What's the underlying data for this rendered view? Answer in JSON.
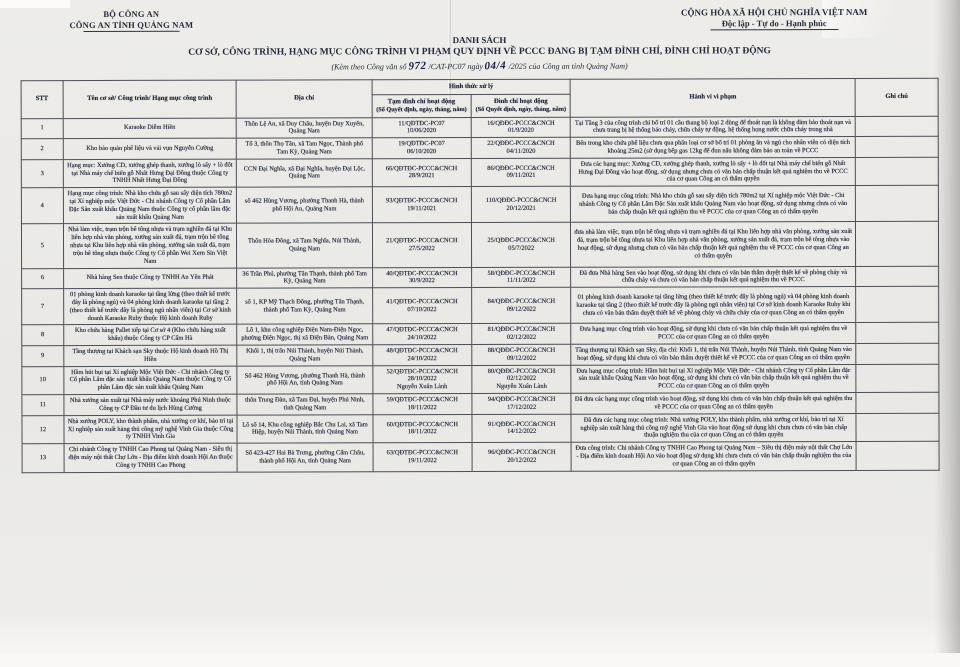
{
  "colors": {
    "ink": "#242a3c",
    "paper": "#e9e8e4",
    "border": "#4c4e58"
  },
  "header": {
    "agency_parent": "BỘ CÔNG AN",
    "agency": "CÔNG AN TỈNH QUẢNG NAM",
    "national_title": "CỘNG HÒA XÃ HỘI CHỦ NGHĨA VIỆT NAM",
    "national_motto": "Độc lập - Tự do - Hạnh phúc"
  },
  "title": {
    "heading": "DANH SÁCH",
    "subheading": "CƠ SỞ, CÔNG TRÌNH, HẠNG MỤC CÔNG TRÌNH VI PHẠM QUY ĐỊNH VỀ PCCC ĐANG BỊ TẠM ĐÌNH CHỈ, ĐÌNH CHỈ HOẠT ĐỘNG",
    "note_prefix": "(Kèm theo Công văn số ",
    "doc_number": "972",
    "note_middle": " /CAT-PC07 ngày ",
    "doc_date": "04/4",
    "note_suffix": " /2025 của Công an tỉnh Quảng Nam)"
  },
  "table": {
    "columns": {
      "stt": "STT",
      "name": "Tên cơ sở/ Công trình/ Hạng mục công trình",
      "address": "Địa chỉ",
      "sanction_group": "Hình thức xử lý",
      "tam": "Tạm đình chỉ hoạt động",
      "tam_sub": "(Số Quyết định, ngày, tháng, năm)",
      "dinh": "Đình chỉ hoạt động",
      "dinh_sub": "(Số Quyết định, ngày, tháng, năm)",
      "violation": "Hành vi vi phạm",
      "note": "Ghi chú"
    },
    "rows": [
      {
        "stt": "1",
        "name": "Karaoke Diễm Hiền",
        "address": "Thôn Lệ An, xã Duy Châu, huyện Duy Xuyên, Quảng Nam",
        "tam_so": "11/QĐTĐC-PC07",
        "tam_ngay": "10/06/2020",
        "tam_extra": "",
        "dinh_so": "16/QĐĐC-PCCC&CNCH",
        "dinh_ngay": "01/9/2020",
        "dinh_extra": "",
        "violation": "Tại Tầng 3 của công trình chỉ bố trí 01 cầu thang bộ loại 2 dùng để thoát nạn là không đảm bảo thoát nạn và chưa trang bị hệ thống báo cháy, chữa cháy tự động, hệ thống họng nước chữa cháy trong nhà",
        "note": ""
      },
      {
        "stt": "2",
        "name": "Kho bảo quản phế liệu và vải vụn Nguyễn Cường",
        "address": "Tổ 3, thôn Thọ Tân, xã Tam Ngọc, Thành phố Tam Kỳ, Quảng Nam",
        "tam_so": "19/QĐTĐC-PC07",
        "tam_ngay": "06/10/2020",
        "tam_extra": "",
        "dinh_so": "22/QĐĐC-PCCC&CNCH",
        "dinh_ngay": "04/11/2020",
        "dinh_extra": "",
        "violation": "Bên trong kho chứa phế liệu chưa qua phân loại cơ sở bố trí 01 phòng ăn và ngủ cho nhân viên có diện tích khoảng 25m2 (sử dụng bếp gas 12kg để đun nấu không đảm bảo an toàn về PCCC",
        "note": ""
      },
      {
        "stt": "3",
        "name": "Hạng mục: Xưởng CD, xưởng ghép thanh, xưởng lò sấy + lò đốt tại Nhà máy chế biến gỗ Nhất Hưng Đại Đồng thuộc Công ty TNHH Nhất Hưng Đại Đồng",
        "address": "CCN Đại Nghĩa, xã Đại Nghĩa, huyện Đại Lộc, Quảng Nam",
        "tam_so": "66/QĐTĐC-PCCC&CNCH",
        "tam_ngay": "28/9/2021",
        "tam_extra": "",
        "dinh_so": "86/QĐĐC-PCCC&CNCH",
        "dinh_ngay": "09/11/2021",
        "dinh_extra": "",
        "violation": "Đưa các hạng mục: Xưởng CD, xưởng ghép thanh, xưởng lò sấy + lò đốt tại Nhà máy chế biến gỗ Nhất Hưng Đại Đồng vào hoạt động, sử dụng nhưng chưa có văn bản chấp thuận kết quả nghiệm thu về PCCC của cơ quan Công an có thẩm quyền",
        "note": ""
      },
      {
        "stt": "4",
        "name": "Hạng mục công trình: Nhà kho chứa gỗ sau sấy diện tích 780m2 tại Xí nghiệp mộc Việt Đức - Chi nhánh Công ty Cổ phần Lâm Đặc Sản xuất khẩu Quảng Nam thuộc Công ty cổ phần lâm đặc sản xuất khẩu Quảng Nam",
        "address": "số 462 Hùng Vương, phường Thanh Hà, thành phố Hội An, Quảng Nam",
        "tam_so": "93/QĐTĐC-PCCC&CNCH",
        "tam_ngay": "19/11/2021",
        "tam_extra": "",
        "dinh_so": "110/QĐĐC-PCCC&CNCH",
        "dinh_ngay": "20/12/2021",
        "dinh_extra": "",
        "violation": "Đưa hạng mục công trình: Nhà kho chứa gỗ sau sấy diện tích 780m2 tại Xí nghiệp mộc Việt Đức - Chi nhánh Công ty Cổ phần Lâm Đặc Sản xuất khẩu Quảng Nam vào hoạt động, sử dụng nhưng chưa có văn bản chấp thuận kết quả nghiệm thu về PCCC của cơ quan Công an có thẩm quyền",
        "note": ""
      },
      {
        "stt": "5",
        "name": "Nhà làm việc, trạm trộn bê tông nhựa và trạm nghiền đá tại Khu liên hợp nhà văn phòng, xưởng sản xuất đá, trạm trộn bê tông nhựa tại Khu liên hợp nhà văn phòng, xưởng sản xuất đá, trạm trộn bê tông nhựa thuộc Công ty Cổ phần Wei Xern Sin Việt Nam",
        "address": "Thôn Hòa Đông, xã Tam Nghĩa, Núi Thành, Quảng Nam",
        "tam_so": "21/QĐTĐC-PCCC&CNCH",
        "tam_ngay": "27/5/2022",
        "tam_extra": "",
        "dinh_so": "25/QĐĐC-PCCC&CNCH",
        "dinh_ngay": "05/7/2022",
        "dinh_extra": "",
        "violation": "đưa nhà làm việc, trạm trộn bê tông nhựa và trạm nghiền đá tại Khu liên hợp nhà văn phòng, xưởng sản xuất đá, trạm trộn bê tông nhựa tại Khu liên hợp nhà văn phòng, xưởng sản xuất đá, trạm trộn bê tông nhựa vào hoạt động, sử dụng nhưng chưa có văn bản chấp thuận kết quả nghiệm thu về PCCC của cơ quan Công an có thẩm quyền",
        "note": ""
      },
      {
        "stt": "6",
        "name": "Nhà hàng Sen thuộc Công ty TNHH An Yên Phát",
        "address": "36 Trần Phú, phường Tân Thạnh, thành phố Tam Kỳ, Quảng Nam",
        "tam_so": "40/QĐTĐC-PCCC&CNCH",
        "tam_ngay": "30/9/2022",
        "tam_extra": "",
        "dinh_so": "58/QĐĐC-PCCC&CNCH",
        "dinh_ngay": "11/11/2022",
        "dinh_extra": "",
        "violation": "Đã đưa Nhà hàng Sen vào hoạt động, sử dụng khi chưa có văn bản thẩm duyệt thiết kế về phòng cháy và chữa cháy và chưa có văn bản chấp thuận kết quả nghiệm thu về PCCC",
        "note": ""
      },
      {
        "stt": "7",
        "name": "01 phòng kinh doanh karaoke tại tầng lửng (theo thiết kế trước đây là phòng ngủ) và 04 phòng kinh doanh karaoke tại tầng 2 (theo thiết kế trước đây là phòng ngủ nhân viên) tại Cơ sở kinh doanh Karaoke Ruby thuộc Hộ kinh doanh Ruby",
        "address": "số 1, KP Mỹ Thạch Đông, phường Tân Thạnh, thành phố Tam Kỳ, Quảng Nam",
        "tam_so": "41/QĐTĐC-PCCC&CNCH",
        "tam_ngay": "07/10/2022",
        "tam_extra": "",
        "dinh_so": "84/QĐĐC-PCCC&CNCH",
        "dinh_ngay": "09/12/2022",
        "dinh_extra": "",
        "violation": "01 phòng kinh doanh karaoke tại tầng lửng (theo thiết kế trước đây là phòng ngủ) và 04 phòng kinh doanh karaoke tại tầng 2 (theo thiết kế trước đây là phòng ngủ nhân viên) tại Cơ sở kinh doanh Karaoke Ruby khi chưa có văn bản thẩm duyệt thiết kế về phòng cháy và chữa cháy của cơ quan Công an có thẩm quyền",
        "note": ""
      },
      {
        "stt": "8",
        "name": "Kho chứa hàng Pallet xếp tại Cơ sở 4 (Kho chứa hàng xuất khẩu) thuộc Công ty CP Cẩm Hà",
        "address": "Lô 1, khu công nghiệp Điện Nam-Điện Ngọc, phường Điện Ngọc, thị xã Điện Bàn, Quảng Nam",
        "tam_so": "47/QĐTĐC-PCCC&CNCH",
        "tam_ngay": "24/10/2022",
        "tam_extra": "",
        "dinh_so": "81/QĐĐC-PCCC&CNCH",
        "dinh_ngay": "02/12/2022",
        "dinh_extra": "",
        "violation": "Đưa hạng mục công trình vào hoạt động, sử dụng khi chưa có văn bản chấp thuận kết quả nghiệm thu về PCCC của cơ quan Công an có thẩm quyền",
        "note": ""
      },
      {
        "stt": "9",
        "name": "Tầng thượng tại Khách sạn Sky thuộc Hộ kinh doanh Hồ Thị Hiền",
        "address": "Khối 1, thị trấn Núi Thành, huyện Núi Thành, Quảng Nam",
        "tam_so": "48/QĐTĐC-PCCC&CNCH",
        "tam_ngay": "24/10/2022",
        "tam_extra": "",
        "dinh_so": "88/QĐĐC-PCCC&CNCH",
        "dinh_ngay": "09/12/2022",
        "dinh_extra": "",
        "violation": "Tầng thượng tại Khách sạn Sky, địa chỉ: Khối 1, thị trấn Núi Thành, huyện Núi Thành, tỉnh Quảng Nam vào hoạt động, sử dụng khi chưa có văn bản thẩm duyệt thiết kế về PCCC của cơ quan Công an có thẩm quyền",
        "note": ""
      },
      {
        "stt": "10",
        "name": "Hầm hút bụi tại Xí nghiệp Mộc Việt Đức - Chi nhánh Công ty Cổ phần Lâm đặc sản xuất khẩu Quảng Nam thuộc Công ty Cổ phần Lâm đặc sản xuất khẩu Quảng Nam",
        "address": "Số 462 Hùng Vương, phường Thanh Hà, thành phố Hội An, tỉnh Quảng Nam",
        "tam_so": "52/QĐTĐC-PCCC&CNCH",
        "tam_ngay": "28/10/2022",
        "tam_extra": "Nguyễn Xuân Lành",
        "dinh_so": "80/QĐĐC-PCCC&CNCH",
        "dinh_ngay": "02/12/2022",
        "dinh_extra": "Nguyễn Xuân Lành",
        "violation": "Đưa hạng mục công trình: Hầm hút bụi tại Xí nghiệp Mộc Việt Đức - Chi nhánh Công ty Cổ phần Lâm đặc sản xuất khẩu Quảng Nam vào hoạt động, sử dụng khi chưa có văn bản chấp thuận kết quả nghiệm thu về PCCC của cơ quan Công an có thẩm quyền",
        "note": ""
      },
      {
        "stt": "11",
        "name": "Nhà xưởng sản xuất tại Nhà máy nước khoáng Phú Ninh thuộc Công ty CP Đầu tư du lịch Hùng Cường",
        "address": "thôn Trung Đàn, xã Tam Đại, huyện Phú Ninh, tỉnh Quảng Nam",
        "tam_so": "59/QĐTĐC-PCCC&CNCH",
        "tam_ngay": "18/11/2022",
        "tam_extra": "",
        "dinh_so": "94/QĐĐC-PCCC&CNCH",
        "dinh_ngay": "17/12/2022",
        "dinh_extra": "",
        "violation": "Đã đưa các hạng mục công trình vào hoạt động, sử dụng khi chưa có văn bản chấp thuận kết quả nghiệm thu về PCCC của cơ quan Công an có thẩm quyền",
        "note": ""
      },
      {
        "stt": "12",
        "name": "Nhà xưởng POLY, kho thành phẩm, nhà xưởng cơ khí, bảo trì tại Xí nghiệp sản xuất hàng thủ công mỹ nghệ Vinh Gia thuộc Công ty TNHH Vinh Gia",
        "address": "Lô số 14, Khu công nghiệp Bắc Chu Lai, xã Tam Hiệp, huyện Núi Thành, tỉnh Quảng Nam",
        "tam_so": "60/QĐTĐC-PCCC&CNCH",
        "tam_ngay": "18/11/2022",
        "tam_extra": "",
        "dinh_so": "91/QĐĐC-PCCC&CNCH",
        "dinh_ngay": "14/12/2022",
        "dinh_extra": "",
        "violation": "Đã đưa các hạng mục công trình: Nhà xưởng POLY, kho thành phẩm, nhà xưởng cơ khí, bảo trì tại Xí nghiệp sản xuất hàng thủ công mỹ nghệ Vinh Gia vào hoạt động sử dụng khi chưa chưa có văn bản chấp thuận nghiệm thu của cơ quan Công an có thẩm quyền",
        "note": ""
      },
      {
        "stt": "13",
        "name": "Chi nhánh Công ty TNHH Cao Phong tại Quảng Nam - Siêu thị điện máy nội thất Chợ Lớn - Địa điểm kinh doanh Hội An thuộc Công ty TNHH Cao Phong",
        "address": "Số 423-427 Hai Bà Trưng, phường Cẩm Châu, thành phố Hội An, tỉnh Quảng Nam",
        "tam_so": "63/QĐTĐC-PCCC&CNCH",
        "tam_ngay": "19/11/2022",
        "tam_extra": "",
        "dinh_so": "96/QĐĐC-PCCC&CNCH",
        "dinh_ngay": "20/12/2022",
        "dinh_extra": "",
        "violation": "Đưa công trình: Chi nhánh Công ty TNHH Cao Phong tại Quảng Nam – Siêu thị điện máy nội thất Chợ Lớn - Địa điểm kinh doanh Hội An vào hoạt động sử dụng khi chưa chưa có văn bản chấp thuận nghiệm thu của cơ quan Công an có thẩm quyền",
        "note": ""
      }
    ]
  }
}
